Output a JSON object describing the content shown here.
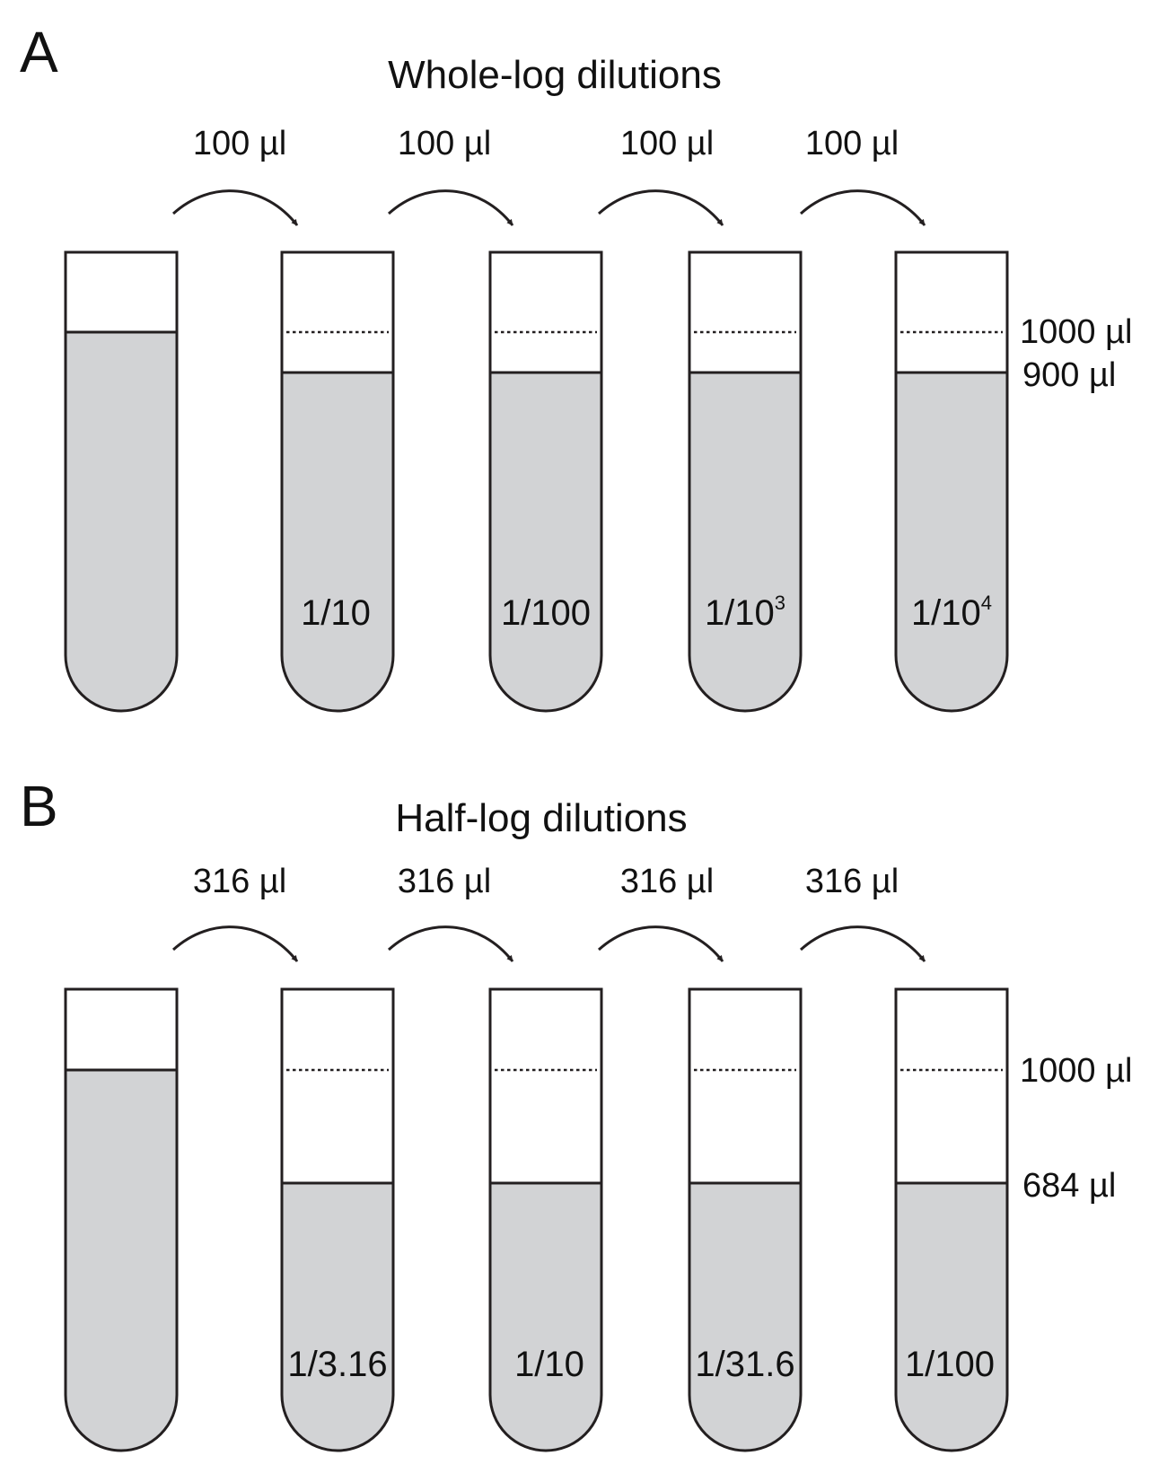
{
  "colors": {
    "liquid": "#d2d3d5",
    "outline": "#231f20",
    "background": "#ffffff"
  },
  "panels": [
    {
      "letter": "A",
      "title": "Whole-log dilutions",
      "transfer_labels": [
        "100 µl",
        "100 µl",
        "100 µl",
        "100 µl"
      ],
      "dilution_labels": [
        {
          "base": "1/10",
          "sup": ""
        },
        {
          "base": "1/100",
          "sup": ""
        },
        {
          "base": "1/10",
          "sup": "3"
        },
        {
          "base": "1/10",
          "sup": "4"
        }
      ],
      "volume_labels": {
        "upper": "1000 µl",
        "lower": "900 µl"
      },
      "stock_fill_fraction": 1.0,
      "dilution_fill_fraction": 0.9
    },
    {
      "letter": "B",
      "title": "Half-log dilutions",
      "transfer_labels": [
        "316 µl",
        "316 µl",
        "316 µl",
        "316 µl"
      ],
      "dilution_labels": [
        {
          "base": "1/3.16",
          "sup": ""
        },
        {
          "base": "1/10",
          "sup": ""
        },
        {
          "base": "1/31.6",
          "sup": ""
        },
        {
          "base": "1/100",
          "sup": ""
        }
      ],
      "volume_labels": {
        "upper": "1000 µl",
        "lower": "684 µl"
      },
      "stock_fill_fraction": 1.0,
      "dilution_fill_fraction": 0.684
    }
  ]
}
